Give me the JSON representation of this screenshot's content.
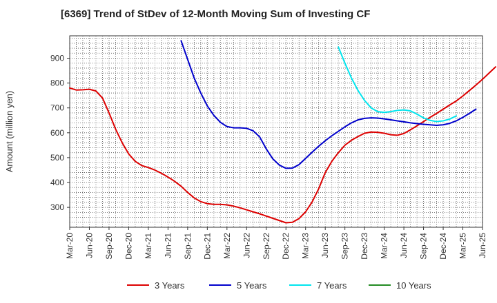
{
  "chart_data": {
    "type": "line",
    "title": "[6369]  Trend of StDev of 12-Month Moving Sum of Investing CF",
    "ylabel": "Amount (million yen)",
    "xlabel": "",
    "ylim": [
      220,
      990
    ],
    "yticks": [
      300,
      400,
      500,
      600,
      700,
      800,
      900
    ],
    "xticks": [
      "Mar-20",
      "Jun-20",
      "Sep-20",
      "Dec-20",
      "Mar-21",
      "Jun-21",
      "Sep-21",
      "Dec-21",
      "Mar-22",
      "Jun-22",
      "Sep-22",
      "Dec-22",
      "Mar-23",
      "Jun-23",
      "Sep-23",
      "Dec-23",
      "Mar-24",
      "Jun-24",
      "Sep-24",
      "Dec-24",
      "Mar-25",
      "Jun-25"
    ],
    "grid": true,
    "legend_position": "bottom",
    "series": [
      {
        "name": "3 Years",
        "color": "#dd0000",
        "start": "2020-03",
        "values": [
          780,
          772,
          773,
          775,
          768,
          740,
          680,
          615,
          560,
          515,
          485,
          468,
          460,
          450,
          437,
          422,
          405,
          385,
          360,
          338,
          323,
          315,
          312,
          312,
          310,
          305,
          298,
          290,
          282,
          274,
          265,
          256,
          247,
          238,
          240,
          255,
          282,
          322,
          375,
          440,
          485,
          520,
          550,
          570,
          585,
          598,
          603,
          602,
          598,
          592,
          590,
          597,
          612,
          628,
          645,
          662,
          678,
          695,
          712,
          728,
          748,
          770,
          792,
          815,
          840,
          865
        ]
      },
      {
        "name": "5 Years",
        "color": "#0000cc",
        "start": "2021-08",
        "values": [
          970,
          895,
          820,
          760,
          708,
          670,
          642,
          625,
          620,
          620,
          618,
          608,
          583,
          535,
          495,
          470,
          457,
          458,
          472,
          497,
          522,
          546,
          568,
          588,
          606,
          624,
          640,
          652,
          658,
          660,
          659,
          656,
          652,
          648,
          644,
          640,
          637,
          634,
          632,
          630,
          632,
          638,
          648,
          662,
          678,
          695
        ]
      },
      {
        "name": "7 Years",
        "color": "#00e5ee",
        "start": "2023-08",
        "values": [
          945,
          880,
          820,
          770,
          730,
          700,
          685,
          682,
          685,
          690,
          692,
          688,
          675,
          660,
          650,
          645,
          648,
          655,
          668
        ]
      },
      {
        "name": "10 Years",
        "color": "#228b22",
        "start": "2025-03",
        "values": []
      }
    ]
  }
}
